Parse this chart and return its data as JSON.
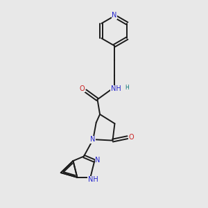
{
  "bg_color": "#e8e8e8",
  "bond_color": "#1a1a1a",
  "N_color": "#2222cc",
  "O_color": "#cc2222",
  "H_color": "#007070",
  "figsize": [
    3.0,
    3.0
  ],
  "dpi": 100,
  "xlim": [
    0,
    10
  ],
  "ylim": [
    0,
    10
  ]
}
